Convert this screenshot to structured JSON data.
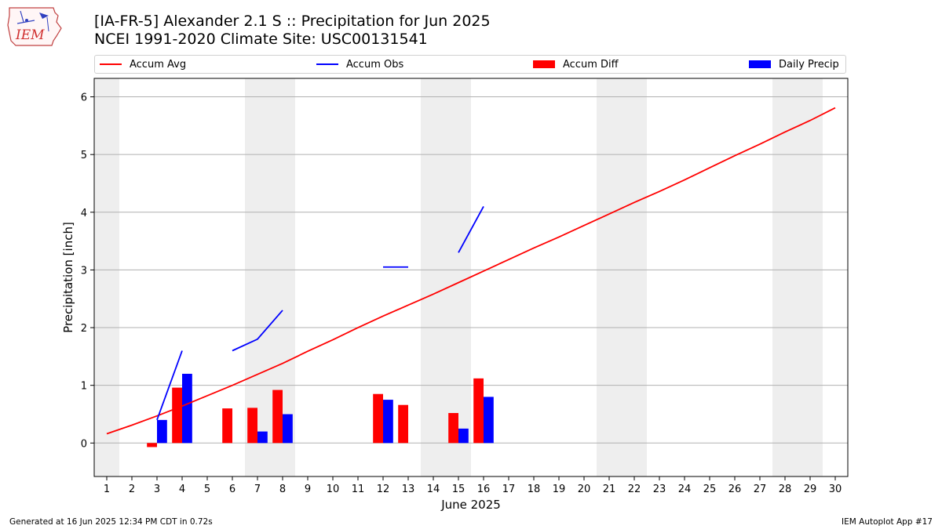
{
  "header": {
    "title_line1": "[IA-FR-5] Alexander 2.1 S :: Precipitation for Jun 2025",
    "title_line2": "NCEI 1991-2020 Climate Site: USC00131541",
    "logo_text": "IEM"
  },
  "footer": {
    "generated": "Generated at 16 Jun 2025 12:34 PM CDT in 0.72s",
    "app": "IEM Autoplot App #17"
  },
  "chart_data": {
    "type": "bar",
    "xlabel": "June 2025",
    "ylabel": "Precipitation [inch]",
    "xlim": [
      0.5,
      30.5
    ],
    "ylim": [
      -0.58,
      6.32
    ],
    "x_ticks": [
      1,
      2,
      3,
      4,
      5,
      6,
      7,
      8,
      9,
      10,
      11,
      12,
      13,
      14,
      15,
      16,
      17,
      18,
      19,
      20,
      21,
      22,
      23,
      24,
      25,
      26,
      27,
      28,
      29,
      30
    ],
    "y_ticks": [
      0,
      1,
      2,
      3,
      4,
      5,
      6
    ],
    "grid": "horizontal",
    "legend_position": "top",
    "weekend_days": [
      1,
      7,
      8,
      14,
      15,
      21,
      22,
      28,
      29
    ],
    "series": [
      {
        "name": "Accum Avg",
        "kind": "line",
        "color": "#ff0000",
        "x": [
          1,
          2,
          3,
          4,
          5,
          6,
          7,
          8,
          9,
          10,
          11,
          12,
          13,
          14,
          15,
          16,
          17,
          18,
          19,
          20,
          21,
          22,
          23,
          24,
          25,
          26,
          27,
          28,
          29,
          30
        ],
        "values": [
          0.16,
          0.31,
          0.47,
          0.64,
          0.82,
          1.0,
          1.19,
          1.38,
          1.59,
          1.79,
          2.0,
          2.2,
          2.39,
          2.58,
          2.78,
          2.98,
          3.18,
          3.38,
          3.57,
          3.77,
          3.97,
          4.17,
          4.36,
          4.56,
          4.77,
          4.98,
          5.18,
          5.39,
          5.59,
          5.81
        ]
      },
      {
        "name": "Accum Obs",
        "kind": "line",
        "color": "#0000ff",
        "segments": [
          {
            "x": [
              3,
              4
            ],
            "values": [
              0.4,
              1.6
            ]
          },
          {
            "x": [
              6,
              7,
              8
            ],
            "values": [
              1.6,
              1.8,
              2.3
            ]
          },
          {
            "x": [
              12,
              13
            ],
            "values": [
              3.05,
              3.05
            ]
          },
          {
            "x": [
              15,
              16
            ],
            "values": [
              3.3,
              4.1
            ]
          }
        ]
      },
      {
        "name": "Accum Diff",
        "kind": "bar",
        "color": "#ff0000",
        "x": [
          3,
          4,
          6,
          7,
          8,
          12,
          13,
          15,
          16
        ],
        "values": [
          -0.07,
          0.96,
          0.6,
          0.61,
          0.92,
          0.85,
          0.66,
          0.52,
          1.12
        ]
      },
      {
        "name": "Daily Precip",
        "kind": "bar",
        "color": "#0000ff",
        "x": [
          3,
          4,
          7,
          8,
          12,
          15,
          16
        ],
        "values": [
          0.4,
          1.2,
          0.2,
          0.5,
          0.75,
          0.25,
          0.8
        ]
      }
    ]
  }
}
